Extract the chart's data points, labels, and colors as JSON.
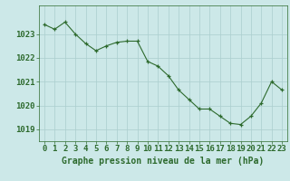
{
  "x": [
    0,
    1,
    2,
    3,
    4,
    5,
    6,
    7,
    8,
    9,
    10,
    11,
    12,
    13,
    14,
    15,
    16,
    17,
    18,
    19,
    20,
    21,
    22,
    23
  ],
  "y": [
    1023.4,
    1023.2,
    1023.5,
    1023.0,
    1022.6,
    1022.3,
    1022.5,
    1022.65,
    1022.7,
    1022.7,
    1021.85,
    1021.65,
    1021.25,
    1020.65,
    1020.25,
    1019.85,
    1019.85,
    1019.55,
    1019.25,
    1019.2,
    1019.55,
    1020.1,
    1021.0,
    1020.65
  ],
  "ylim": [
    1018.5,
    1024.2
  ],
  "yticks": [
    1019,
    1020,
    1021,
    1022,
    1023
  ],
  "xticks": [
    0,
    1,
    2,
    3,
    4,
    5,
    6,
    7,
    8,
    9,
    10,
    11,
    12,
    13,
    14,
    15,
    16,
    17,
    18,
    19,
    20,
    21,
    22,
    23
  ],
  "line_color": "#2d6a2d",
  "marker_color": "#2d6a2d",
  "bg_color": "#cce8e8",
  "grid_color": "#aacece",
  "xlabel": "Graphe pression niveau de la mer (hPa)",
  "xlabel_color": "#2d6a2d",
  "xlabel_fontsize": 7.0,
  "tick_color": "#2d6a2d",
  "tick_fontsize": 6.5
}
